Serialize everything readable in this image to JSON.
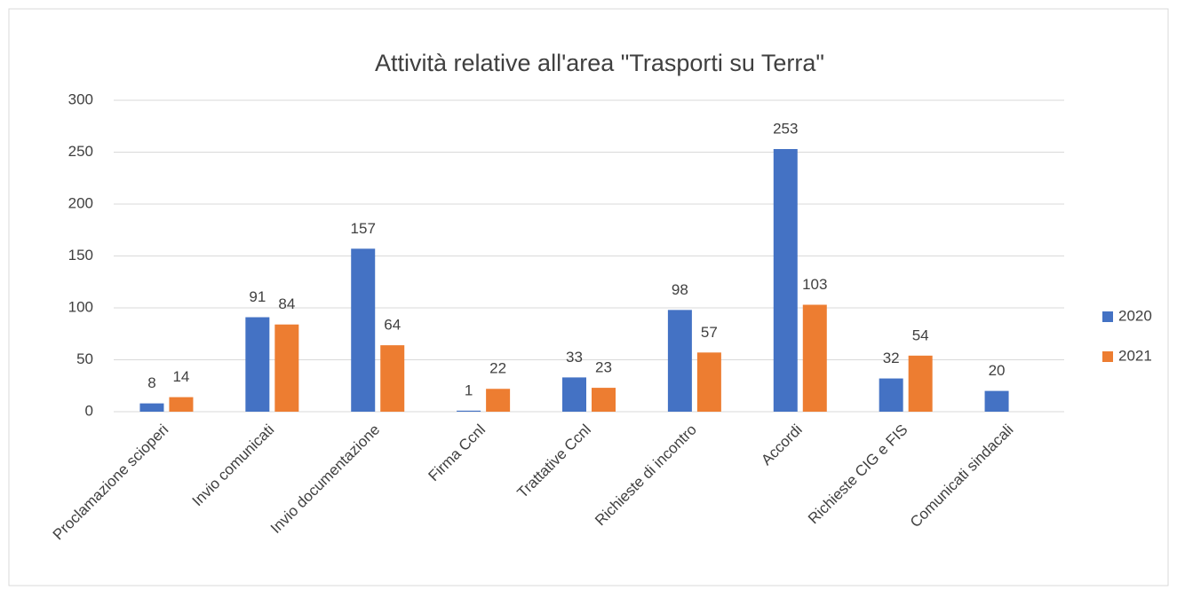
{
  "chart_data": {
    "type": "bar",
    "title": "Attività relative all'area \"Trasporti su Terra\"",
    "categories": [
      "Proclamazione scioperi",
      "Invio comunicati",
      "Invio documentazione",
      "Firma Ccnl",
      "Trattative Ccnl",
      "Richieste di incontro",
      "Accordi",
      "Richieste CIG e FIS",
      "Comunicati sindacali"
    ],
    "series": [
      {
        "name": "2020",
        "color": "#4472c4",
        "values": [
          8,
          91,
          157,
          1,
          33,
          98,
          253,
          32,
          20
        ]
      },
      {
        "name": "2021",
        "color": "#ed7d31",
        "values": [
          14,
          84,
          64,
          22,
          23,
          57,
          103,
          54,
          null
        ]
      }
    ],
    "ylim": [
      0,
      300
    ],
    "yticks": [
      0,
      50,
      100,
      150,
      200,
      250,
      300
    ],
    "grid": true,
    "legend": "right"
  }
}
